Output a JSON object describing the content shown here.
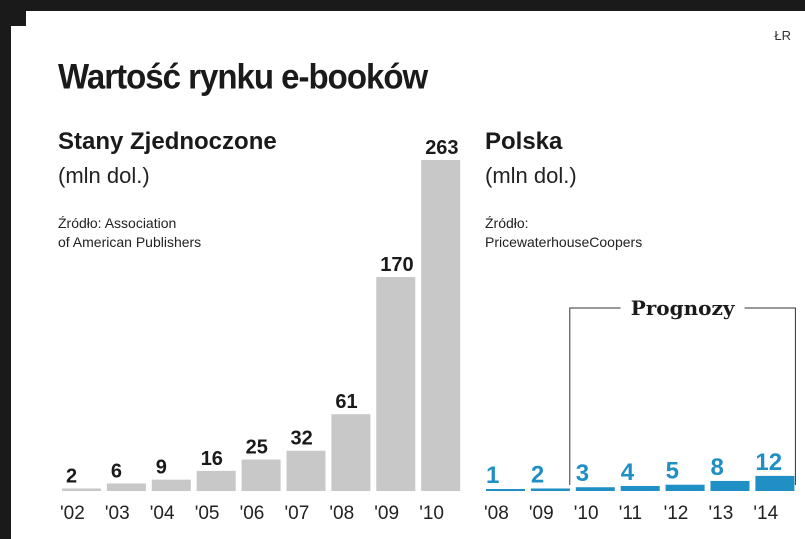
{
  "title": "Wartość rynku e-booków",
  "credit": "ŁR",
  "panels": {
    "us": {
      "title": "Stany Zjednoczone",
      "unit": "(mln dol.)",
      "source_line1": "Źródło: Association",
      "source_line2": "of American Publishers"
    },
    "pl": {
      "title": "Polska",
      "unit": "(mln dol.)",
      "source_line1": "Źródło:",
      "source_line2": "PricewaterhouseCoopers",
      "forecast_label": "Prognozy"
    }
  },
  "colors": {
    "us_bar": "#c8c8c8",
    "pl_bar": "#1f8fc4",
    "pl_label": "#1f8fc4",
    "text": "#1a1a1a"
  },
  "chart_data": [
    {
      "type": "bar",
      "title": "Stany Zjednoczone",
      "ylabel": "(mln dol.)",
      "categories": [
        "'02",
        "'03",
        "'04",
        "'05",
        "'06",
        "'07",
        "'08",
        "'09",
        "'10"
      ],
      "values": [
        2,
        6,
        9,
        16,
        25,
        32,
        61,
        170,
        263
      ],
      "ylim": [
        0,
        263
      ],
      "grid": false,
      "legend": "none"
    },
    {
      "type": "bar",
      "title": "Polska",
      "ylabel": "(mln dol.)",
      "categories": [
        "'08",
        "'09",
        "'10",
        "'11",
        "'12",
        "'13",
        "'14"
      ],
      "values": [
        1,
        2,
        3,
        4,
        5,
        8,
        12
      ],
      "forecast_from": "'10",
      "ylim": [
        0,
        263
      ],
      "grid": false,
      "legend": "none"
    }
  ]
}
